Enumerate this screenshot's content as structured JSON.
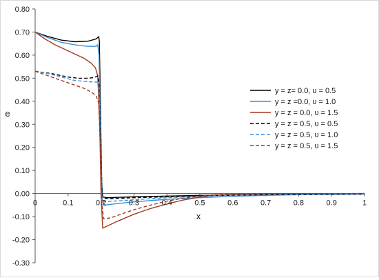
{
  "chart_data": {
    "type": "line",
    "title": "",
    "xlabel": "x",
    "ylabel": "e",
    "xlim": [
      0,
      1
    ],
    "ylim": [
      -0.3,
      0.8
    ],
    "x_ticks": [
      0,
      0.1,
      0.2,
      0.3,
      0.4,
      0.5,
      0.6,
      0.7,
      0.8,
      0.9,
      1
    ],
    "x_tick_labels": [
      "0",
      "0.1",
      "0.2",
      "0.3",
      "0.4",
      "0.5",
      "0.6",
      "0.7",
      "0.8",
      "0.9",
      "1"
    ],
    "y_ticks": [
      -0.3,
      -0.2,
      -0.1,
      0,
      0.1,
      0.2,
      0.3,
      0.4,
      0.5,
      0.6,
      0.7,
      0.8
    ],
    "y_tick_labels": [
      "-0.30",
      "-0.20",
      "-0.10",
      "0.00",
      "0.10",
      "0.20",
      "0.30",
      "0.40",
      "0.50",
      "0.60",
      "0.70",
      "0.80"
    ],
    "grid": "horizontal line at y = 0",
    "legend_position": "right",
    "series": [
      {
        "name": "y = z= 0.0,  υ = 0.5",
        "color": "#000000",
        "dash": "solid",
        "points": [
          [
            0,
            0.7
          ],
          [
            0.04,
            0.68
          ],
          [
            0.08,
            0.665
          ],
          [
            0.12,
            0.658
          ],
          [
            0.16,
            0.66
          ],
          [
            0.185,
            0.67
          ],
          [
            0.193,
            0.68
          ],
          [
            0.195,
            0.66
          ],
          [
            0.198,
            0.4
          ],
          [
            0.202,
            0.05
          ],
          [
            0.205,
            -0.015
          ],
          [
            0.22,
            -0.018
          ],
          [
            0.3,
            -0.014
          ],
          [
            0.5,
            -0.008
          ],
          [
            0.7,
            -0.004
          ],
          [
            1.0,
            -0.002
          ]
        ]
      },
      {
        "name": "y = z =0.0,  υ = 1.0",
        "color": "#3a8fd8",
        "dash": "solid",
        "points": [
          [
            0,
            0.7
          ],
          [
            0.04,
            0.675
          ],
          [
            0.08,
            0.655
          ],
          [
            0.12,
            0.645
          ],
          [
            0.16,
            0.638
          ],
          [
            0.185,
            0.638
          ],
          [
            0.19,
            0.645
          ],
          [
            0.194,
            0.6
          ],
          [
            0.198,
            0.3
          ],
          [
            0.203,
            -0.02
          ],
          [
            0.21,
            -0.05
          ],
          [
            0.24,
            -0.045
          ],
          [
            0.3,
            -0.036
          ],
          [
            0.4,
            -0.025
          ],
          [
            0.5,
            -0.018
          ],
          [
            0.6,
            -0.012
          ],
          [
            0.7,
            -0.008
          ],
          [
            0.8,
            -0.005
          ],
          [
            1.0,
            -0.003
          ]
        ]
      },
      {
        "name": "y = z = 0.0,  υ = 1.5",
        "color": "#a23a1e",
        "dash": "solid",
        "points": [
          [
            0,
            0.7
          ],
          [
            0.03,
            0.67
          ],
          [
            0.06,
            0.645
          ],
          [
            0.09,
            0.625
          ],
          [
            0.12,
            0.605
          ],
          [
            0.15,
            0.585
          ],
          [
            0.17,
            0.565
          ],
          [
            0.183,
            0.545
          ],
          [
            0.19,
            0.51
          ],
          [
            0.196,
            0.3
          ],
          [
            0.2,
            0.0
          ],
          [
            0.205,
            -0.15
          ],
          [
            0.22,
            -0.14
          ],
          [
            0.25,
            -0.12
          ],
          [
            0.3,
            -0.09
          ],
          [
            0.35,
            -0.065
          ],
          [
            0.4,
            -0.045
          ],
          [
            0.45,
            -0.028
          ],
          [
            0.5,
            -0.015
          ],
          [
            0.55,
            -0.008
          ],
          [
            0.6,
            -0.004
          ],
          [
            0.7,
            -0.001
          ],
          [
            1.0,
            0.0
          ]
        ]
      },
      {
        "name": "y = z = 0.5,  υ = 0.5",
        "color": "#000000",
        "dash": "dashed",
        "points": [
          [
            0,
            0.53
          ],
          [
            0.05,
            0.52
          ],
          [
            0.1,
            0.505
          ],
          [
            0.13,
            0.5
          ],
          [
            0.16,
            0.5
          ],
          [
            0.18,
            0.503
          ],
          [
            0.19,
            0.51
          ],
          [
            0.194,
            0.48
          ],
          [
            0.198,
            0.3
          ],
          [
            0.203,
            0.0
          ],
          [
            0.207,
            -0.02
          ],
          [
            0.23,
            -0.022
          ],
          [
            0.3,
            -0.018
          ],
          [
            0.5,
            -0.01
          ],
          [
            0.7,
            -0.005
          ],
          [
            1.0,
            -0.002
          ]
        ]
      },
      {
        "name": "y = z = 0.5,  υ = 1.0",
        "color": "#3a8fd8",
        "dash": "dashed",
        "points": [
          [
            0,
            0.53
          ],
          [
            0.04,
            0.52
          ],
          [
            0.08,
            0.505
          ],
          [
            0.12,
            0.49
          ],
          [
            0.16,
            0.485
          ],
          [
            0.19,
            0.483
          ],
          [
            0.194,
            0.45
          ],
          [
            0.198,
            0.25
          ],
          [
            0.203,
            -0.01
          ],
          [
            0.21,
            -0.035
          ],
          [
            0.25,
            -0.032
          ],
          [
            0.3,
            -0.027
          ],
          [
            0.4,
            -0.018
          ],
          [
            0.5,
            -0.012
          ],
          [
            0.6,
            -0.007
          ],
          [
            0.8,
            -0.003
          ],
          [
            1.0,
            -0.001
          ]
        ]
      },
      {
        "name": "y = z = 0.5,  υ = 1.5",
        "color": "#a23a1e",
        "dash": "dashed",
        "points": [
          [
            0,
            0.53
          ],
          [
            0.03,
            0.515
          ],
          [
            0.06,
            0.5
          ],
          [
            0.09,
            0.485
          ],
          [
            0.12,
            0.47
          ],
          [
            0.15,
            0.455
          ],
          [
            0.17,
            0.44
          ],
          [
            0.185,
            0.425
          ],
          [
            0.193,
            0.39
          ],
          [
            0.198,
            0.2
          ],
          [
            0.203,
            -0.05
          ],
          [
            0.208,
            -0.11
          ],
          [
            0.23,
            -0.105
          ],
          [
            0.26,
            -0.09
          ],
          [
            0.3,
            -0.07
          ],
          [
            0.35,
            -0.05
          ],
          [
            0.4,
            -0.033
          ],
          [
            0.45,
            -0.02
          ],
          [
            0.5,
            -0.011
          ],
          [
            0.55,
            -0.005
          ],
          [
            0.6,
            -0.002
          ],
          [
            0.7,
            0.0
          ],
          [
            1.0,
            0.0
          ]
        ]
      }
    ]
  }
}
